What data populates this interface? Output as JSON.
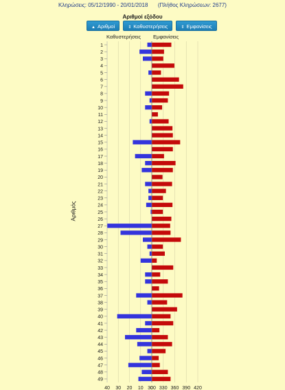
{
  "header": {
    "draws_label": "Κληρώσεις:",
    "date_range": "05/12/1990 - 20/01/2018",
    "draws_count": "(Πλήθος Κληρώσεων: 2677)"
  },
  "title": "Αριθμοί εξόδου",
  "buttons": [
    {
      "label": "Αριθμοί",
      "arrow": "▲"
    },
    {
      "label": "Καθυστερήσεις",
      "arrow": "⇕"
    },
    {
      "label": "Εμφανίσεις",
      "arrow": "⇕"
    }
  ],
  "left_header": "Καθυστερήσεις",
  "right_header": "Εμφανίσεις",
  "colors": {
    "delays": "#3434dc",
    "appearances": "#c40a0a"
  },
  "chart_data": {
    "type": "bar",
    "orientation": "horizontal-diverging",
    "ylabel": "Αριθμός",
    "categories": [
      "1",
      "2",
      "3",
      "4",
      "5",
      "6",
      "7",
      "8",
      "9",
      "10",
      "11",
      "12",
      "13",
      "14",
      "15",
      "16",
      "17",
      "18",
      "19",
      "20",
      "21",
      "22",
      "23",
      "24",
      "25",
      "26",
      "27",
      "28",
      "29",
      "30",
      "31",
      "32",
      "33",
      "34",
      "35",
      "36",
      "37",
      "38",
      "39",
      "40",
      "41",
      "42",
      "43",
      "44",
      "45",
      "46",
      "47",
      "48",
      "49"
    ],
    "series": [
      {
        "name": "Καθυστερήσεις",
        "values": [
          4,
          11,
          8,
          0,
          3,
          0,
          0,
          6,
          2,
          6,
          0,
          2,
          0,
          0,
          17,
          0,
          15,
          6,
          9,
          0,
          6,
          3,
          3,
          5,
          1,
          0,
          40,
          28,
          8,
          4,
          2,
          10,
          0,
          6,
          6,
          0,
          14,
          4,
          0,
          31,
          6,
          14,
          24,
          13,
          4,
          11,
          21,
          9,
          12
        ]
      },
      {
        "name": "Εμφανίσεις",
        "values": [
          351,
          332,
          330,
          359,
          324,
          371,
          382,
          345,
          342,
          327,
          316,
          344,
          354,
          355,
          374,
          355,
          332,
          362,
          355,
          328,
          353,
          337,
          329,
          354,
          329,
          351,
          348,
          349,
          376,
          329,
          334,
          313,
          356,
          322,
          342,
          319,
          380,
          340,
          366,
          349,
          356,
          320,
          342,
          353,
          336,
          318,
          321,
          342,
          349
        ]
      }
    ],
    "left_axis": {
      "ticks": [
        40,
        30,
        20,
        10,
        0
      ],
      "max": 40
    },
    "right_axis": {
      "ticks": [
        300,
        330,
        360,
        390,
        420
      ],
      "min": 300,
      "max": 420
    }
  }
}
